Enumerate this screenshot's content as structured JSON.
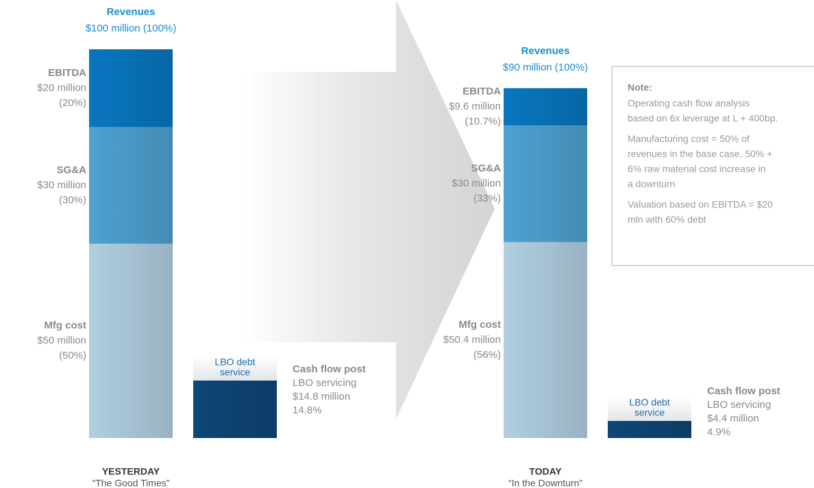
{
  "chart_data": [
    {
      "type": "stacked_bar",
      "title": "YESTERDAY",
      "subtitle": "“The Good Times”",
      "total": {
        "name": "Revenues",
        "value": 100,
        "value_label": "$100 million (100%)"
      },
      "series": [
        {
          "name": "Mfg cost",
          "color": "#b1cfe2",
          "value": 50,
          "value_label": "$50 million",
          "share_label": "(50%)"
        },
        {
          "name": "SG&A",
          "color": "#4ea2d2",
          "value": 30,
          "value_label": "$30 million",
          "share_label": "(30%)"
        },
        {
          "name": "EBITDA",
          "color": "#0877bf",
          "value": 20,
          "value_label": "$20 million",
          "share_label": "(20%)"
        }
      ],
      "cash_flow": {
        "name": "Cash flow post",
        "subname": "LBO servicing",
        "color": "#0e4677",
        "value": 14.8,
        "value_label": "$14.8 million",
        "share_label": "14.8%"
      },
      "debt_label": [
        "LBO debt",
        "service"
      ]
    },
    {
      "type": "stacked_bar",
      "title": "TODAY",
      "subtitle": "“In the Downturn”",
      "total": {
        "name": "Revenues",
        "value": 90,
        "value_label": "$90 million (100%)"
      },
      "series": [
        {
          "name": "Mfg cost",
          "color": "#b1cfe2",
          "value": 50.4,
          "value_label": "$50.4 million",
          "share_label": "(56%)"
        },
        {
          "name": "SG&A",
          "color": "#4ea2d2",
          "value": 30,
          "value_label": "$30 million",
          "share_label": "(33%)"
        },
        {
          "name": "EBITDA",
          "color": "#0877bf",
          "value": 9.6,
          "value_label": "$9.6 million",
          "share_label": "(10.7%)"
        }
      ],
      "cash_flow": {
        "name": "Cash flow post",
        "subname": "LBO servicing",
        "color": "#0e4677",
        "value": 4.4,
        "value_label": "$4.4 million",
        "share_label": "4.9%"
      },
      "debt_label": [
        "LBO debt",
        "service"
      ]
    }
  ],
  "note": {
    "title": "Note:",
    "paragraphs": [
      [
        "Operating cash flow analysis",
        "based on 6x leverage at L + 400bp."
      ],
      [
        "Manufacturing cost = 50% of",
        "revenues in the base case. 50% +",
        "6% raw material cost increase in",
        "a downturn"
      ],
      [
        "Valuation based on EBITDA = $20",
        "mln with 60% debt"
      ]
    ]
  }
}
